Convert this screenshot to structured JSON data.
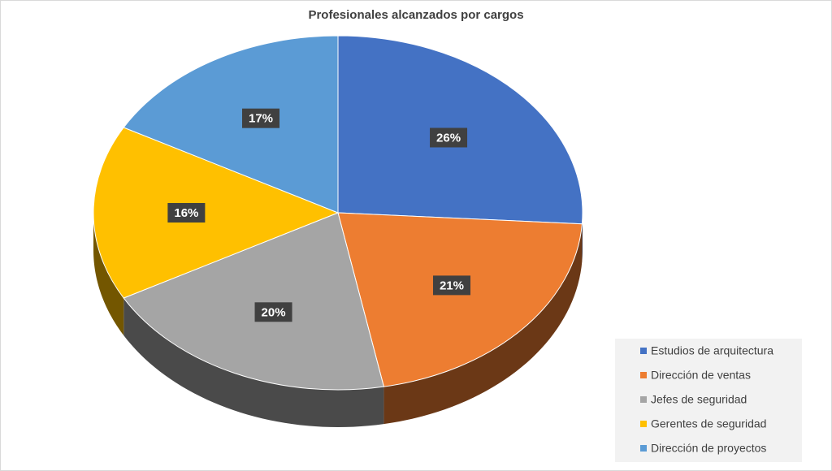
{
  "chart_data": {
    "type": "pie",
    "title": "Profesionales alcanzados por cargos",
    "categories": [
      "Estudios de arquitectura",
      "Dirección de ventas",
      "Jefes de seguridad",
      "Gerentes de seguridad",
      "Dirección de proyectos"
    ],
    "values": [
      26,
      21,
      20,
      16,
      17
    ],
    "value_labels": [
      "26%",
      "21%",
      "20%",
      "16%",
      "17%"
    ],
    "colors": [
      "#4472c4",
      "#ed7d31",
      "#a5a5a5",
      "#ffc000",
      "#5b9bd5"
    ],
    "legend": "right"
  }
}
